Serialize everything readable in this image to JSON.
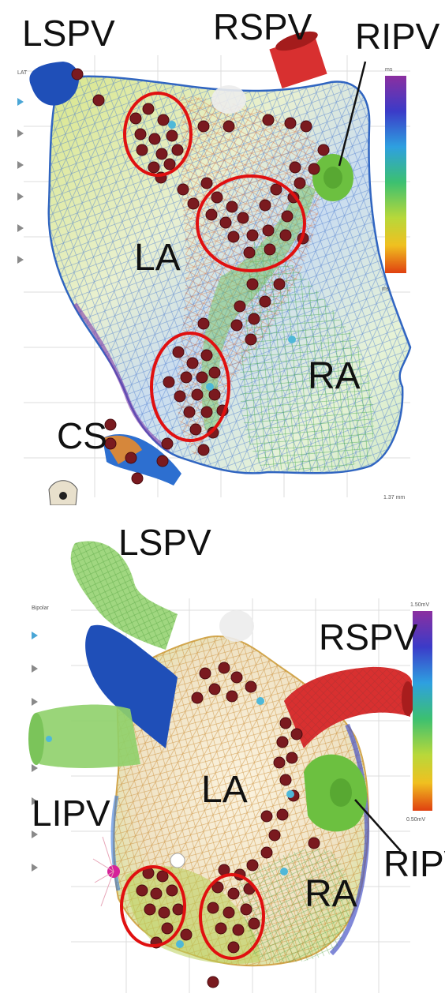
{
  "top_panel": {
    "labels": {
      "lspv": "LSPV",
      "rspv": "RSPV",
      "ripv": "RIPV",
      "la": "LA",
      "ra": "RA",
      "cs": "CS"
    },
    "side_tag": "LAT",
    "scale_top_text": "ms",
    "scale_bottom_text": "ms",
    "footer_text": "1.37 mm",
    "colorbar_colors": [
      "#8b2fa0",
      "#3b3bc8",
      "#2ea0e0",
      "#3cc070",
      "#b8d83a",
      "#f0c020",
      "#e04010"
    ]
  },
  "bottom_panel": {
    "labels": {
      "lspv": "LSPV",
      "rspv": "RSPV",
      "lipv": "LIPV",
      "ripv": "RIPV",
      "la": "LA",
      "ra": "RA"
    },
    "side_tag": "Bipolar",
    "scale_top_text": "1.50mV",
    "scale_bottom_text": "0.50mV",
    "colorbar_colors": [
      "#8b2fa0",
      "#3b3bc8",
      "#2ea0e0",
      "#3cc070",
      "#b8d83a",
      "#f0c020",
      "#e04010"
    ]
  },
  "colors": {
    "ablation_point": "#7a1a1f",
    "circle_highlight": "#e01010",
    "vein_blue": "#1f4fb8",
    "vein_red": "#d83030",
    "vein_green": "#6cc040"
  }
}
